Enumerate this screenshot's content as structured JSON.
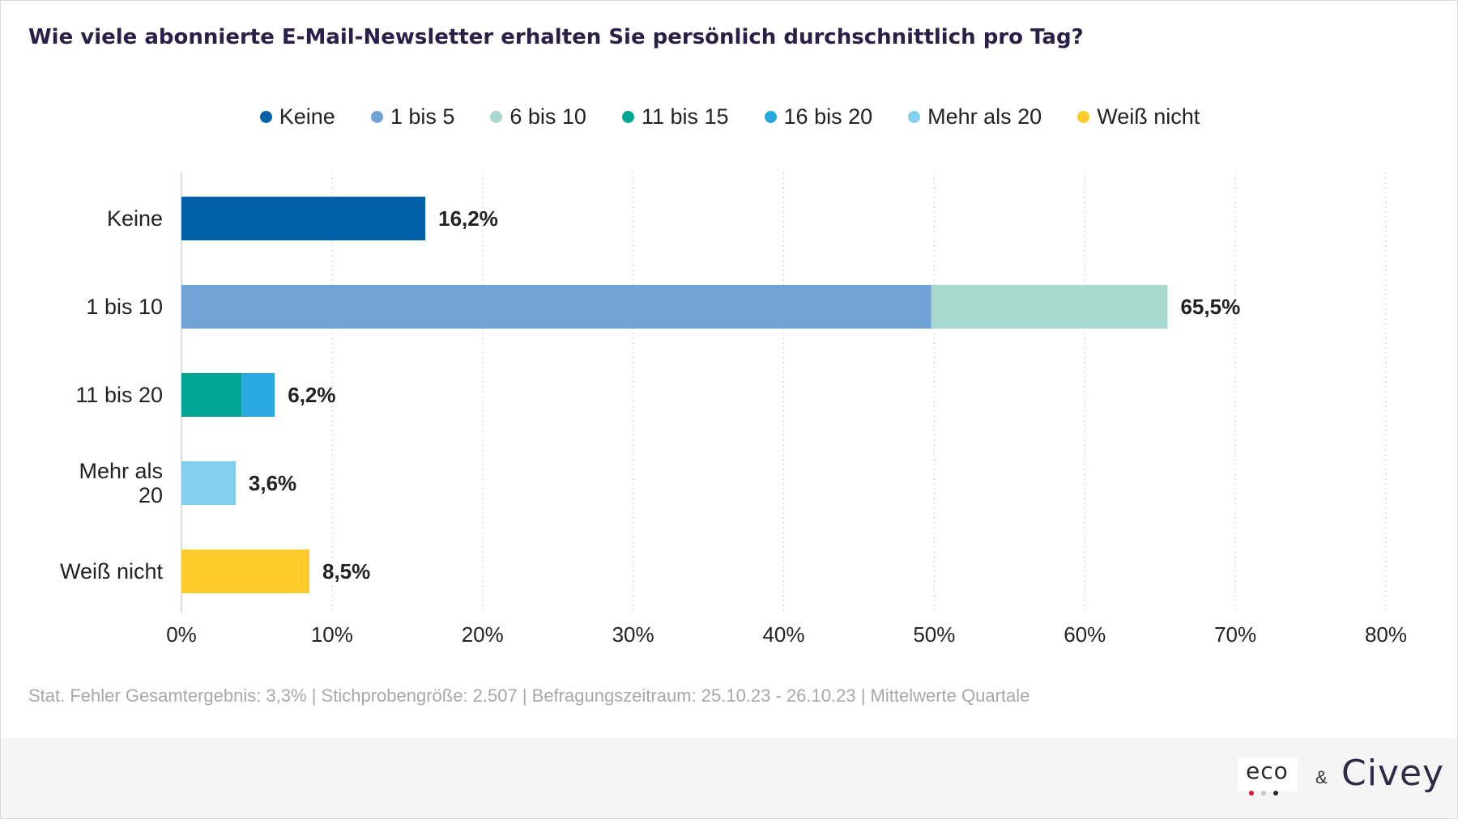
{
  "title": "Wie viele abonnierte E-Mail-Newsletter erhalten Sie persönlich durchschnittlich pro Tag?",
  "legend": [
    {
      "label": "Keine",
      "color": "#0060a8"
    },
    {
      "label": "1 bis 5",
      "color": "#72a3d6"
    },
    {
      "label": "6 bis 10",
      "color": "#a8d8cf"
    },
    {
      "label": "11 bis 15",
      "color": "#00a594"
    },
    {
      "label": "16 bis 20",
      "color": "#2aa9e0"
    },
    {
      "label": "Mehr als 20",
      "color": "#82cfee"
    },
    {
      "label": "Weiß nicht",
      "color": "#ffcb28"
    }
  ],
  "chart_data": {
    "type": "bar",
    "orientation": "horizontal",
    "stacked": true,
    "title": "Wie viele abonnierte E-Mail-Newsletter erhalten Sie persönlich durchschnittlich pro Tag?",
    "categories": [
      "Keine",
      "1 bis 10",
      "11 bis 20",
      "Mehr als 20",
      "Weiß nicht"
    ],
    "category_lines": [
      [
        "Keine"
      ],
      [
        "1 bis 10"
      ],
      [
        "11 bis 20"
      ],
      [
        "Mehr als",
        "20"
      ],
      [
        "Weiß nicht"
      ]
    ],
    "series": [
      {
        "name": "Keine",
        "color": "#0060a8",
        "values": [
          16.2,
          0,
          0,
          0,
          0
        ]
      },
      {
        "name": "1 bis 5",
        "color": "#72a3d6",
        "values": [
          0,
          49.8,
          0,
          0,
          0
        ]
      },
      {
        "name": "6 bis 10",
        "color": "#a8d8cf",
        "values": [
          0,
          15.7,
          0,
          0,
          0
        ]
      },
      {
        "name": "11 bis 15",
        "color": "#00a594",
        "values": [
          0,
          0,
          4.0,
          0,
          0
        ]
      },
      {
        "name": "16 bis 20",
        "color": "#2aa9e0",
        "values": [
          0,
          0,
          2.2,
          0,
          0
        ]
      },
      {
        "name": "Mehr als 20",
        "color": "#82cfee",
        "values": [
          0,
          0,
          0,
          3.6,
          0
        ]
      },
      {
        "name": "Weiß nicht",
        "color": "#ffcb28",
        "values": [
          0,
          0,
          0,
          0,
          8.5
        ]
      }
    ],
    "totals": [
      16.2,
      65.5,
      6.2,
      3.6,
      8.5
    ],
    "total_labels": [
      "16,2%",
      "65,5%",
      "6,2%",
      "3,6%",
      "8,5%"
    ],
    "xlim": [
      0,
      80
    ],
    "x_ticks": [
      0,
      10,
      20,
      30,
      40,
      50,
      60,
      70,
      80
    ],
    "x_tick_labels": [
      "0%",
      "10%",
      "20%",
      "30%",
      "40%",
      "50%",
      "60%",
      "70%",
      "80%"
    ],
    "grid": "vertical-dotted",
    "legend_position": "top-center"
  },
  "footnote": "Stat. Fehler Gesamtergebnis: 3,3% | Stichprobengröße: 2.507 | Befragungszeitraum: 25.10.23 - 26.10.23 | Mittelwerte Quartale",
  "branding": {
    "eco": "eco",
    "amp": "&",
    "civey": "Civey"
  }
}
